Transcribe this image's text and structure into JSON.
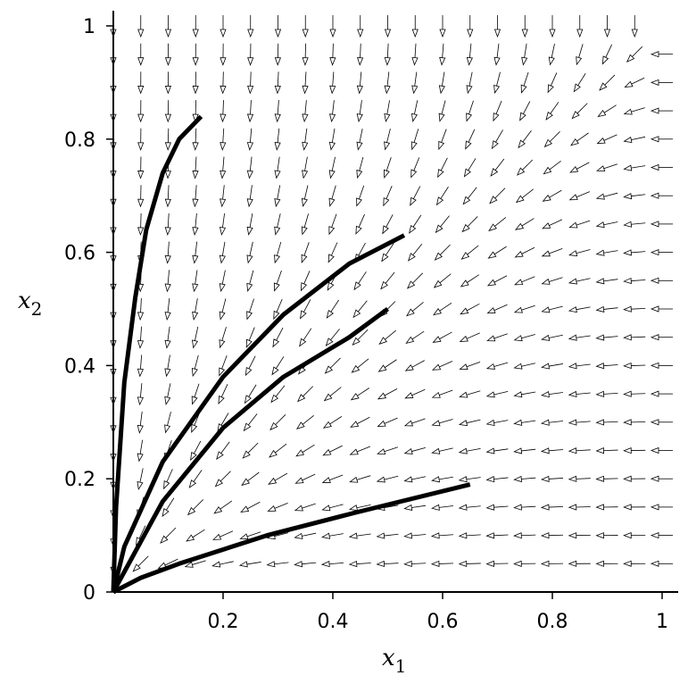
{
  "chart_data": {
    "type": "line",
    "xlabel": "x",
    "xlabel_sub": "1",
    "ylabel": "x",
    "ylabel_sub": "2",
    "xlim": [
      0,
      1
    ],
    "ylim": [
      0,
      1
    ],
    "xticks": [
      0.2,
      0.4,
      0.6,
      0.8,
      1
    ],
    "yticks": [
      0,
      0.2,
      0.4,
      0.6,
      0.8,
      1
    ],
    "series": [
      {
        "color": "#000000",
        "x": [
          0,
          0.005,
          0.02,
          0.04,
          0.06,
          0.09,
          0.12,
          0.16
        ],
        "values": [
          0,
          0.15,
          0.37,
          0.52,
          0.64,
          0.74,
          0.8,
          0.84
        ]
      },
      {
        "color": "#000000",
        "x": [
          0,
          0.02,
          0.09,
          0.2,
          0.31,
          0.43,
          0.53
        ],
        "values": [
          0,
          0.08,
          0.23,
          0.38,
          0.49,
          0.58,
          0.63
        ]
      },
      {
        "color": "#000000",
        "x": [
          0,
          0.09,
          0.2,
          0.31,
          0.43,
          0.5
        ],
        "values": [
          0,
          0.16,
          0.29,
          0.38,
          0.45,
          0.5
        ]
      },
      {
        "color": "#000000",
        "x": [
          0,
          0.05,
          0.12,
          0.28,
          0.44,
          0.65
        ],
        "values": [
          0,
          0.025,
          0.05,
          0.1,
          0.14,
          0.19
        ]
      }
    ]
  }
}
